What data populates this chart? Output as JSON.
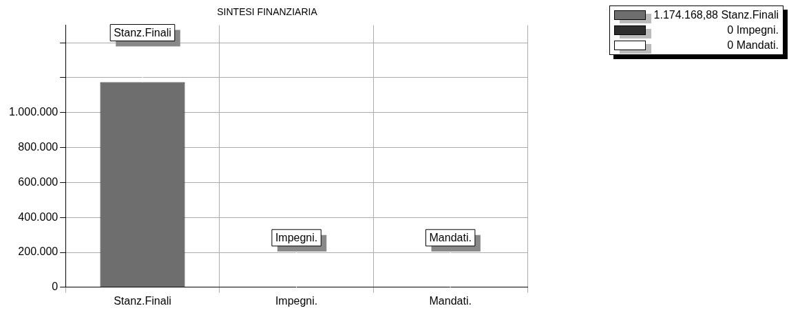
{
  "chart_data": {
    "type": "bar",
    "title": "SINTESI FINANZIARIA",
    "categories": [
      "Stanz.Finali",
      "Impegni.",
      "Mandati."
    ],
    "values": [
      1174168.88,
      0,
      0
    ],
    "colors": [
      "#6e6e6e",
      "#2e2e2e",
      "#ffffff"
    ],
    "ylim": [
      0,
      1500000
    ],
    "yticks": [
      0,
      {
        "value": 200000,
        "label": "200.000"
      },
      {
        "value": 400000,
        "label": "400.000"
      },
      {
        "value": 600000,
        "label": "600.000"
      },
      {
        "value": 800000,
        "label": "800.000"
      },
      {
        "value": 1000000,
        "label": "1.000.000"
      },
      {
        "value": 1200000,
        "label": null
      },
      {
        "value": 1400000,
        "label": null
      }
    ],
    "annotations": [
      {
        "text": "Stanz.Finali",
        "x": "Stanz.Finali",
        "y": 1174168.88
      },
      {
        "text": "Impegni.",
        "x": "Impegni.",
        "y": 0
      },
      {
        "text": "Mandati.",
        "x": "Mandati.",
        "y": 0
      },
      "1.174.168,88 Stanz.Finali",
      "0 Impegni.",
      "0 Mandati."
    ],
    "grid": true
  }
}
